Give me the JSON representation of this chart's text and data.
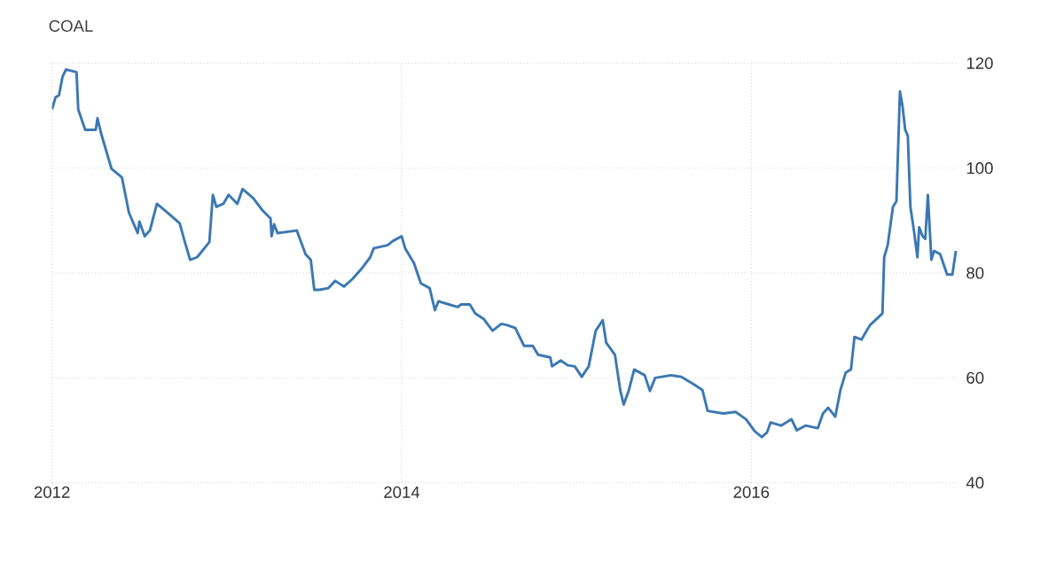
{
  "chart_data": {
    "type": "line",
    "title": "COAL",
    "color": "#3b78b2",
    "xlim": [
      2012,
      2017.18
    ],
    "xticks": [
      2012,
      2014,
      2016
    ],
    "ylim": [
      40,
      120
    ],
    "yticks": [
      40,
      60,
      80,
      100,
      120
    ],
    "grid": true,
    "marker": "none",
    "line_style": "solid",
    "x": [
      2012.0,
      2012.02,
      2012.04,
      2012.06,
      2012.08,
      2012.14,
      2012.15,
      2012.19,
      2012.25,
      2012.26,
      2012.28,
      2012.31,
      2012.34,
      2012.38,
      2012.4,
      2012.44,
      2012.49,
      2012.5,
      2012.53,
      2012.56,
      2012.6,
      2012.66,
      2012.73,
      2012.76,
      2012.79,
      2012.83,
      2012.9,
      2012.92,
      2012.94,
      2012.98,
      2013.01,
      2013.06,
      2013.09,
      2013.15,
      2013.2,
      2013.25,
      2013.256,
      2013.27,
      2013.29,
      2013.4,
      2013.45,
      2013.48,
      2013.5,
      2013.53,
      2013.58,
      2013.62,
      2013.67,
      2013.72,
      2013.77,
      2013.82,
      2013.84,
      2013.92,
      2013.95,
      2014.0,
      2014.02,
      2014.07,
      2014.11,
      2014.16,
      2014.19,
      2014.21,
      2014.27,
      2014.32,
      2014.34,
      2014.39,
      2014.42,
      2014.47,
      2014.52,
      2014.57,
      2014.6,
      2014.65,
      2014.7,
      2014.75,
      2014.78,
      2014.85,
      2014.86,
      2014.91,
      2014.95,
      2014.99,
      2015.03,
      2015.07,
      2015.11,
      2015.15,
      2015.17,
      2015.22,
      2015.25,
      2015.27,
      2015.3,
      2015.33,
      2015.39,
      2015.42,
      2015.45,
      2015.54,
      2015.6,
      2015.67,
      2015.72,
      2015.75,
      2015.84,
      2015.91,
      2015.97,
      2016.02,
      2016.06,
      2016.09,
      2016.11,
      2016.17,
      2016.23,
      2016.26,
      2016.31,
      2016.38,
      2016.41,
      2016.44,
      2016.48,
      2016.51,
      2016.54,
      2016.57,
      2016.59,
      2016.63,
      2016.66,
      2016.68,
      2016.75,
      2016.76,
      2016.78,
      2016.81,
      2016.83,
      2016.85,
      2016.865,
      2016.88,
      2016.895,
      2016.91,
      2016.93,
      2016.95,
      2016.96,
      2016.98,
      2016.995,
      2017.01,
      2017.03,
      2017.045,
      2017.08,
      2017.12,
      2017.15,
      2017.17
    ],
    "values": [
      111.2,
      113.5,
      113.9,
      117.4,
      118.8,
      118.3,
      111.2,
      107.3,
      107.3,
      109.5,
      106.7,
      103.3,
      99.9,
      98.8,
      98.2,
      91.5,
      87.6,
      89.8,
      87.0,
      88.1,
      93.2,
      91.5,
      89.5,
      85.9,
      82.5,
      83.0,
      85.9,
      94.9,
      92.6,
      93.2,
      94.9,
      93.2,
      96.0,
      94.3,
      92.1,
      90.4,
      87.0,
      89.3,
      87.6,
      88.1,
      83.6,
      82.5,
      76.8,
      76.8,
      77.1,
      78.5,
      77.4,
      78.9,
      80.8,
      83.0,
      84.7,
      85.3,
      86.1,
      87.0,
      84.7,
      81.9,
      78.0,
      77.1,
      72.9,
      74.6,
      74.0,
      73.5,
      74.0,
      74.0,
      72.3,
      71.2,
      69.0,
      70.3,
      70.1,
      69.5,
      66.1,
      66.1,
      64.4,
      63.9,
      62.2,
      63.3,
      62.4,
      62.2,
      60.2,
      62.2,
      69.0,
      71.0,
      66.7,
      64.4,
      57.7,
      54.9,
      57.7,
      61.6,
      60.5,
      57.5,
      60.0,
      60.5,
      60.2,
      58.8,
      57.7,
      53.7,
      53.2,
      53.5,
      52.1,
      49.8,
      48.7,
      49.6,
      51.5,
      50.9,
      52.1,
      50.0,
      50.9,
      50.4,
      53.2,
      54.3,
      52.6,
      57.7,
      61.0,
      61.6,
      67.8,
      67.3,
      69.0,
      70.1,
      72.3,
      83.0,
      85.3,
      92.6,
      93.7,
      114.6,
      111.8,
      107.3,
      106.2,
      92.6,
      88.1,
      83.0,
      88.7,
      87.0,
      86.5,
      94.9,
      82.5,
      84.2,
      83.6,
      79.7,
      79.7,
      84.2
    ]
  }
}
